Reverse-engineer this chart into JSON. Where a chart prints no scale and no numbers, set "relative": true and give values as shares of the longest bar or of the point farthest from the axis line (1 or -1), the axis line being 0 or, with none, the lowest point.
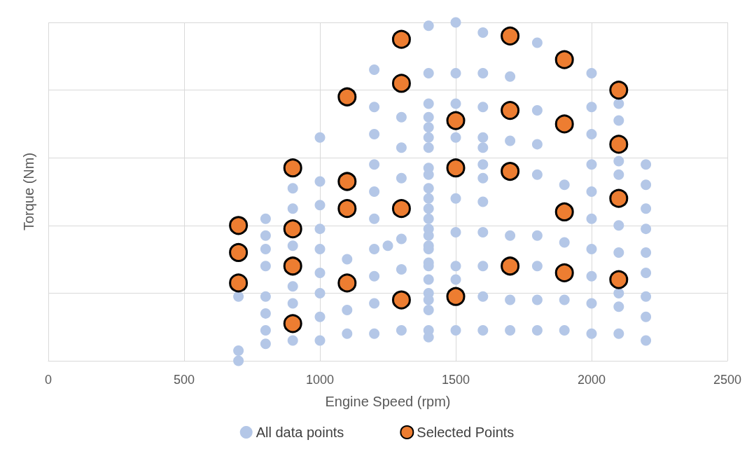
{
  "chart_data": {
    "type": "scatter",
    "xlabel": "Engine Speed (rpm)",
    "ylabel": "Torque (Nm)",
    "relative": true,
    "xlim": [
      0,
      2500
    ],
    "xticks": [
      0,
      500,
      1000,
      1500,
      2000,
      2500
    ],
    "grid": true,
    "legend": "bottom",
    "marker": "circle",
    "series": [
      {
        "name": "All data points",
        "color": "#b4c7e7",
        "x": [
          700,
          700,
          700,
          800,
          800,
          800,
          800,
          800,
          800,
          800,
          800,
          900,
          900,
          900,
          900,
          900,
          900,
          1000,
          1000,
          1000,
          1000,
          1000,
          1000,
          1000,
          1000,
          1000,
          1100,
          1100,
          1100,
          1200,
          1200,
          1200,
          1200,
          1200,
          1200,
          1200,
          1200,
          1200,
          1200,
          1250,
          1300,
          1300,
          1300,
          1300,
          1300,
          1300,
          1400,
          1400,
          1400,
          1400,
          1400,
          1400,
          1400,
          1400,
          1400,
          1400,
          1400,
          1400,
          1400,
          1400,
          1400,
          1400,
          1400,
          1400,
          1400,
          1400,
          1400,
          1400,
          1400,
          1400,
          1400,
          1500,
          1500,
          1500,
          1500,
          1500,
          1500,
          1500,
          1500,
          1500,
          1600,
          1600,
          1600,
          1600,
          1600,
          1600,
          1600,
          1600,
          1600,
          1600,
          1600,
          1600,
          1700,
          1700,
          1700,
          1700,
          1700,
          1800,
          1800,
          1800,
          1800,
          1800,
          1800,
          1800,
          1800,
          1900,
          1900,
          1900,
          1900,
          2000,
          2000,
          2000,
          2000,
          2000,
          2000,
          2000,
          2000,
          2000,
          2000,
          2100,
          2100,
          2100,
          2100,
          2100,
          2100,
          2100,
          2100,
          2100,
          2200,
          2200,
          2200,
          2200,
          2200,
          2200,
          2200,
          2200,
          2200
        ],
        "values": [
          0.03,
          0,
          0.19,
          0.42,
          0.37,
          0.33,
          0.28,
          0.19,
          0.14,
          0.09,
          0.05,
          0.51,
          0.45,
          0.34,
          0.22,
          0.17,
          0.06,
          0.66,
          0.53,
          0.46,
          0.39,
          0.33,
          0.26,
          0.2,
          0.13,
          0.06,
          0.3,
          0.15,
          0.08,
          0.86,
          0.75,
          0.67,
          0.58,
          0.5,
          0.42,
          0.33,
          0.25,
          0.17,
          0.08,
          0.34,
          0.72,
          0.63,
          0.54,
          0.36,
          0.27,
          0.09,
          0.99,
          0.85,
          0.76,
          0.72,
          0.69,
          0.66,
          0.63,
          0.57,
          0.55,
          0.51,
          0.48,
          0.45,
          0.42,
          0.39,
          0.37,
          0.34,
          0.33,
          0.29,
          0.28,
          0.24,
          0.2,
          0.18,
          0.15,
          0.09,
          0.07,
          1,
          0.85,
          0.76,
          0.66,
          0.48,
          0.38,
          0.28,
          0.24,
          0.09,
          0.97,
          0.85,
          0.75,
          0.66,
          0.63,
          0.58,
          0.54,
          0.47,
          0.38,
          0.28,
          0.19,
          0.09,
          0.84,
          0.65,
          0.37,
          0.18,
          0.09,
          0.94,
          0.74,
          0.64,
          0.55,
          0.37,
          0.28,
          0.18,
          0.09,
          0.52,
          0.35,
          0.18,
          0.09,
          0.85,
          0.75,
          0.67,
          0.58,
          0.5,
          0.42,
          0.33,
          0.25,
          0.17,
          0.08,
          0.76,
          0.71,
          0.59,
          0.55,
          0.4,
          0.32,
          0.2,
          0.16,
          0.08,
          0.58,
          0.52,
          0.45,
          0.39,
          0.32,
          0.26,
          0.19,
          0.13,
          0.06
        ]
      },
      {
        "name": "Selected Points",
        "color": "#ed7d31",
        "x": [
          700,
          700,
          700,
          900,
          900,
          900,
          900,
          1100,
          1100,
          1100,
          1100,
          1300,
          1300,
          1300,
          1300,
          1500,
          1500,
          1500,
          1700,
          1700,
          1700,
          1700,
          1900,
          1900,
          1900,
          1900,
          2100,
          2100,
          2100,
          2100
        ],
        "values": [
          0.4,
          0.32,
          0.23,
          0.57,
          0.39,
          0.28,
          0.11,
          0.78,
          0.53,
          0.45,
          0.23,
          0.95,
          0.82,
          0.45,
          0.18,
          0.71,
          0.57,
          0.19,
          0.96,
          0.74,
          0.56,
          0.28,
          0.89,
          0.7,
          0.44,
          0.26,
          0.8,
          0.64,
          0.48,
          0.24
        ]
      }
    ]
  }
}
